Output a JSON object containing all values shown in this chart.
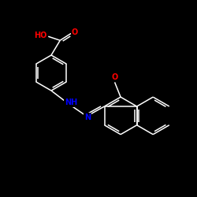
{
  "background_color": "#000000",
  "bond_color": "#ffffff",
  "atom_colors": {
    "O": "#ff0000",
    "N": "#0000ff"
  },
  "lw": 1.1,
  "fs": 7.0,
  "r_hex": 9.5
}
